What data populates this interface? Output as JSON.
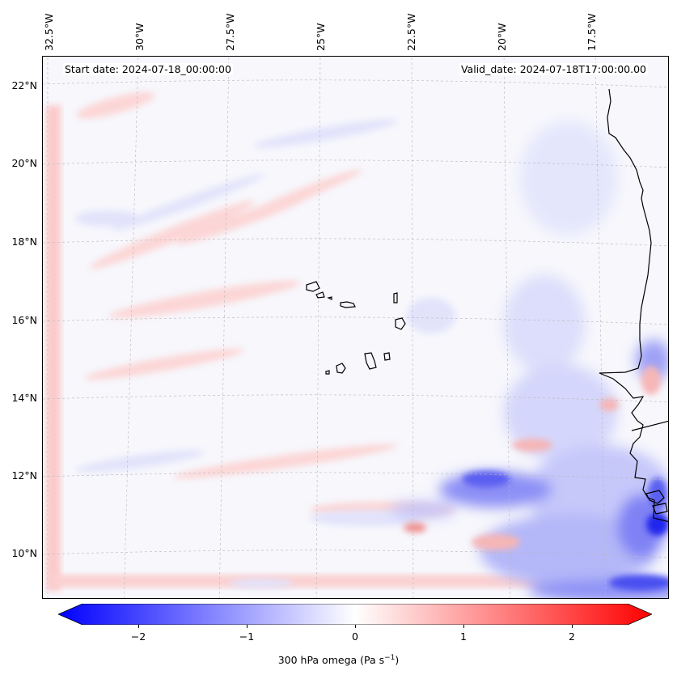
{
  "map": {
    "start_date": "Start date: 2024-07-18_00:00:00",
    "valid_date": "Valid_date: 2024-07-18T17:00:00.00",
    "lon_labels": [
      "32.5°W",
      "30°W",
      "27.5°W",
      "25°W",
      "22.5°W",
      "20°W",
      "17.5°W"
    ],
    "lat_labels": [
      "22°N",
      "20°N",
      "18°N",
      "16°N",
      "14°N",
      "12°N",
      "10°N"
    ],
    "extent": {
      "lon_min": -33.0,
      "lon_max": -16.0,
      "lat_min": 8.9,
      "lat_max": 22.8
    },
    "coastline_color": "#000000",
    "gridlines": true,
    "islands": [
      "Santo Antão",
      "São Vicente",
      "Santa Luzia",
      "São Nicolau",
      "Sal",
      "Boa Vista",
      "Maio",
      "Santiago",
      "Fogo",
      "Brava"
    ]
  },
  "colorbar": {
    "label": "300 hPa omega (Pa s",
    "label_sup": "−1",
    "label_end": ")",
    "ticks": [
      "−2",
      "−1",
      "0",
      "1",
      "2"
    ],
    "tick_values": [
      -2,
      -1,
      0,
      1,
      2
    ],
    "range": [
      -2.75,
      2.75
    ],
    "colormap": "bwr",
    "colors": {
      "negative": "#0000ff",
      "zero": "#ffffff",
      "positive": "#ff0000"
    },
    "extend": "both"
  }
}
